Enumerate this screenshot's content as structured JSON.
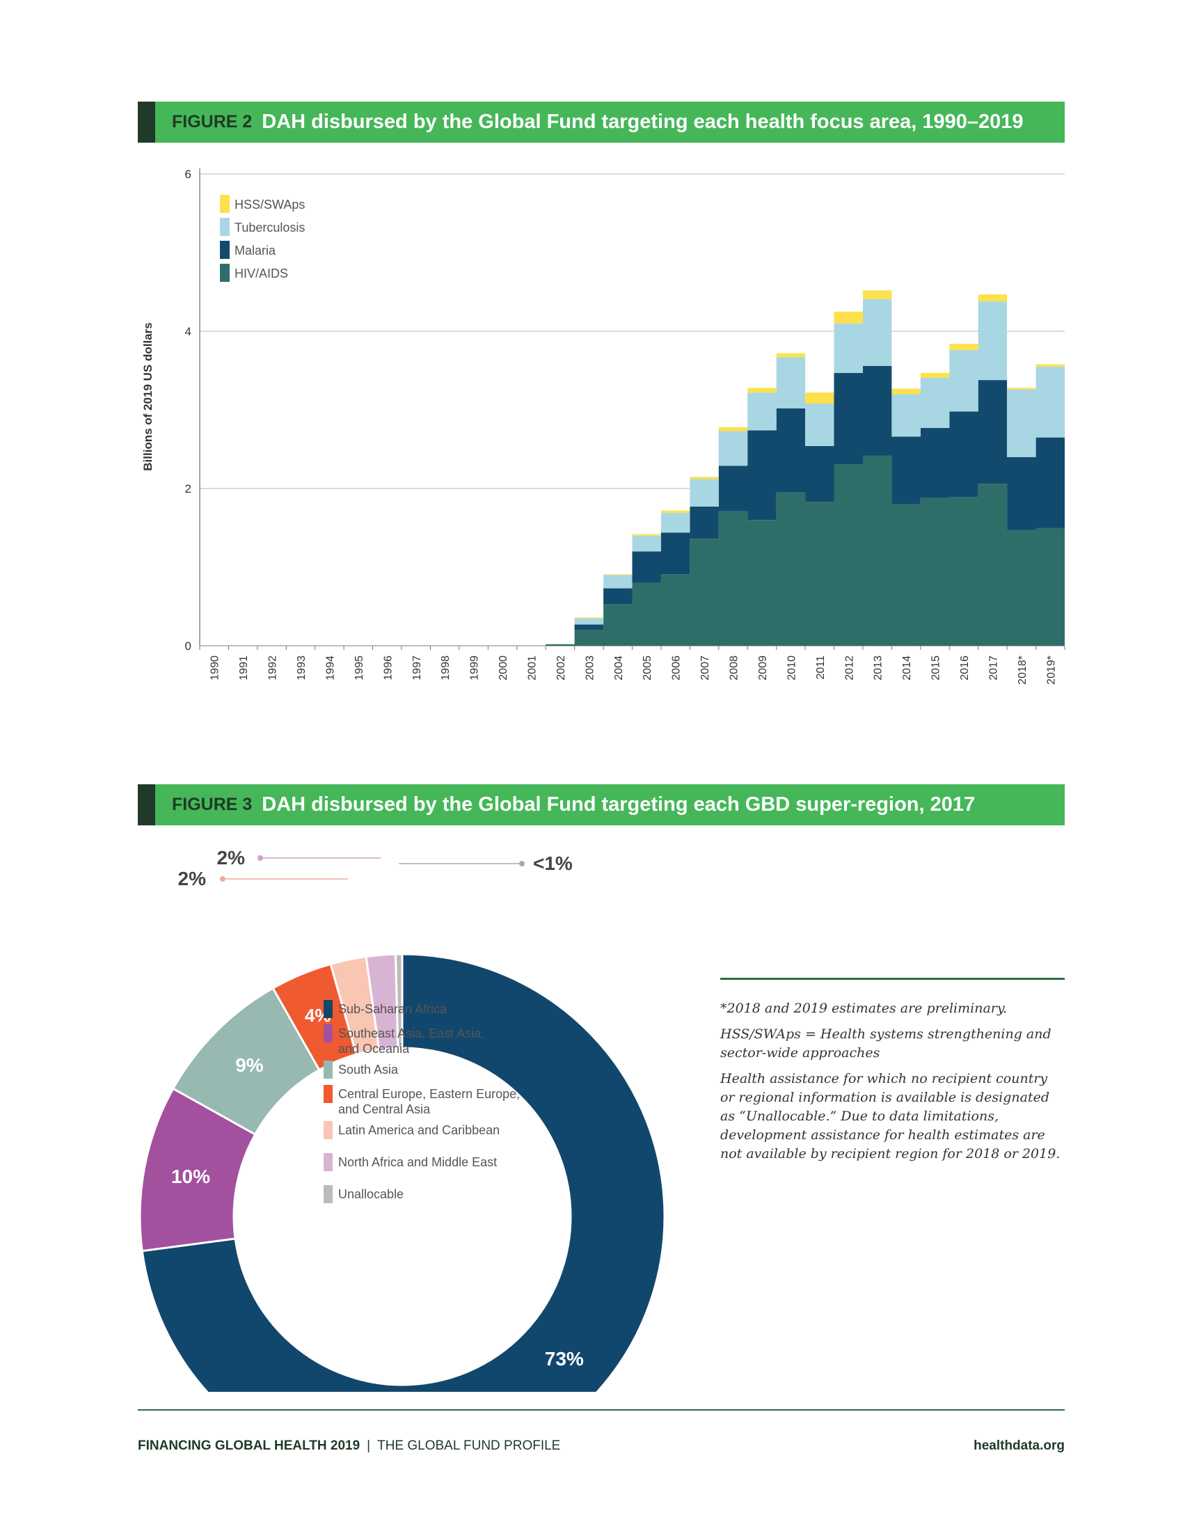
{
  "figure2": {
    "label": "FIGURE 2",
    "title": "DAH disbursed by the Global Fund targeting each health focus area, 1990–2019"
  },
  "figure3": {
    "label": "FIGURE 3",
    "title": "DAH disbursed by the Global Fund targeting each GBD super-region, 2017"
  },
  "notes": {
    "preliminary": "*2018 and 2019 estimates are preliminary.",
    "hss": "HSS/SWAps = Health systems strengthening and sector-wide approaches",
    "unallocable": "Health assistance for which no recipient country or regional information is available is designated as “Unallocable.” Due to data limitations, development assistance for health estimates are not available by recipient region for 2018 or 2019."
  },
  "footer": {
    "left_bold": "FINANCING GLOBAL HEALTH 2019",
    "separator": "|",
    "left_normal": "THE GLOBAL FUND PROFILE",
    "right": "healthdata.org"
  },
  "colors": {
    "HSS/SWAps": "#fde14c",
    "Tuberculosis": "#a9d6e3",
    "Malaria": "#124a6e",
    "HIV/AIDS": "#2f6e68",
    "Sub-Saharan Africa": "#12476d",
    "Southeast Asia, East Asia, and Oceania": "#a3509e",
    "South Asia": "#98b8b2",
    "Central Europe, Eastern Europe, and Central Asia": "#ef5a30",
    "Latin America and Caribbean": "#f9c6b4",
    "North Africa and Middle East": "#d8b4d4",
    "Unallocable": "#bbbbbb"
  },
  "chart_data": [
    {
      "type": "area",
      "stacked": true,
      "ylabel": "Billions of 2019 US dollars",
      "ylim": [
        0,
        6
      ],
      "yticks": [
        0,
        2,
        4,
        6
      ],
      "grid": true,
      "legend_position": "top-left",
      "legend_order": [
        "HSS/SWAps",
        "Tuberculosis",
        "Malaria",
        "HIV/AIDS"
      ],
      "x": [
        "1990",
        "1991",
        "1992",
        "1993",
        "1994",
        "1995",
        "1996",
        "1997",
        "1998",
        "1999",
        "2000",
        "2001",
        "2002",
        "2003",
        "2004",
        "2005",
        "2006",
        "2007",
        "2008",
        "2009",
        "2010",
        "2011",
        "2012",
        "2013",
        "2014",
        "2015",
        "2016",
        "2017",
        "2018*",
        "2019*"
      ],
      "series": [
        {
          "name": "HIV/AIDS",
          "values": [
            0,
            0,
            0,
            0,
            0,
            0,
            0,
            0,
            0,
            0,
            0,
            0,
            0.02,
            0.2,
            0.53,
            0.8,
            0.91,
            1.36,
            1.71,
            1.6,
            1.95,
            1.83,
            2.31,
            2.42,
            1.8,
            1.88,
            1.89,
            2.06,
            1.47,
            1.5
          ]
        },
        {
          "name": "Malaria",
          "values": [
            0,
            0,
            0,
            0,
            0,
            0,
            0,
            0,
            0,
            0,
            0,
            0,
            0,
            0.07,
            0.2,
            0.4,
            0.53,
            0.41,
            0.58,
            1.14,
            1.07,
            0.71,
            1.16,
            1.14,
            0.86,
            0.89,
            1.09,
            1.32,
            0.93,
            1.15
          ]
        },
        {
          "name": "Tuberculosis",
          "values": [
            0,
            0,
            0,
            0,
            0,
            0,
            0,
            0,
            0,
            0,
            0,
            0,
            0,
            0.08,
            0.17,
            0.2,
            0.25,
            0.35,
            0.44,
            0.48,
            0.65,
            0.54,
            0.63,
            0.85,
            0.54,
            0.64,
            0.78,
            1.0,
            0.86,
            0.9
          ]
        },
        {
          "name": "HSS/SWAps",
          "values": [
            0,
            0,
            0,
            0,
            0,
            0,
            0,
            0,
            0,
            0,
            0,
            0,
            0,
            0.01,
            0.01,
            0.02,
            0.03,
            0.03,
            0.05,
            0.06,
            0.05,
            0.14,
            0.15,
            0.11,
            0.07,
            0.06,
            0.08,
            0.09,
            0.02,
            0.03
          ]
        }
      ]
    },
    {
      "type": "pie",
      "donut": true,
      "legend_position": "center",
      "categories": [
        "Sub-Saharan Africa",
        "Southeast Asia, East Asia, and Oceania",
        "South Asia",
        "Central Europe, Eastern Europe, and Central Asia",
        "Latin America and Caribbean",
        "North Africa and Middle East",
        "Unallocable"
      ],
      "values": [
        72.9,
        10.2,
        8.7,
        3.8,
        2.2,
        1.8,
        0.4
      ],
      "labels": [
        "73%",
        "10%",
        "9%",
        "4%",
        "2%",
        "2%",
        "<1%"
      ]
    }
  ]
}
